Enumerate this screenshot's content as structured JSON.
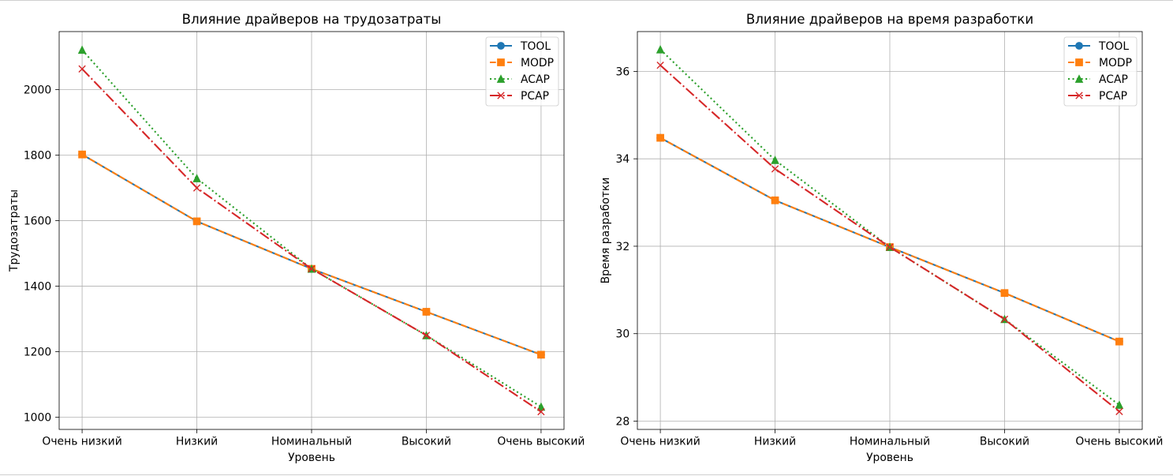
{
  "chart_data": [
    {
      "type": "line",
      "title": "Влияние драйверов на трудозатраты",
      "xlabel": "Уровень",
      "ylabel": "Трудозатраты",
      "categories": [
        "Очень низкий",
        "Низкий",
        "Номинальный",
        "Высокий",
        "Очень высокий"
      ],
      "yticks": [
        1000,
        1200,
        1400,
        1600,
        1800,
        2000
      ],
      "ylim": [
        963,
        2177
      ],
      "grid": true,
      "legend": "top-right",
      "series": [
        {
          "name": "TOOL",
          "color": "#1f77b4",
          "values": [
            1802,
            1598,
            1453,
            1322,
            1191
          ]
        },
        {
          "name": "MODP",
          "color": "#ff7f0e",
          "values": [
            1802,
            1598,
            1453,
            1322,
            1191
          ]
        },
        {
          "name": "ACAP",
          "color": "#2ca02c",
          "values": [
            2121,
            1729,
            1453,
            1250,
            1032
          ]
        },
        {
          "name": "PCAP",
          "color": "#d62728",
          "values": [
            2063,
            1700,
            1453,
            1250,
            1017
          ]
        }
      ]
    },
    {
      "type": "line",
      "title": "Влияние драйверов на время разработки",
      "xlabel": "Уровень",
      "ylabel": "Время разработки",
      "categories": [
        "Очень низкий",
        "Низкий",
        "Номинальный",
        "Высокий",
        "Очень высокий"
      ],
      "yticks": [
        28,
        30,
        32,
        34,
        36
      ],
      "ylim": [
        27.81,
        36.91
      ],
      "grid": true,
      "legend": "top-right",
      "series": [
        {
          "name": "TOOL",
          "color": "#1f77b4",
          "values": [
            34.48,
            33.05,
            31.98,
            30.93,
            29.82
          ]
        },
        {
          "name": "MODP",
          "color": "#ff7f0e",
          "values": [
            34.48,
            33.05,
            31.98,
            30.93,
            29.82
          ]
        },
        {
          "name": "ACAP",
          "color": "#2ca02c",
          "values": [
            36.5,
            33.97,
            31.98,
            30.33,
            28.37
          ]
        },
        {
          "name": "PCAP",
          "color": "#d62728",
          "values": [
            36.14,
            33.77,
            31.98,
            30.33,
            28.22
          ]
        }
      ]
    }
  ]
}
